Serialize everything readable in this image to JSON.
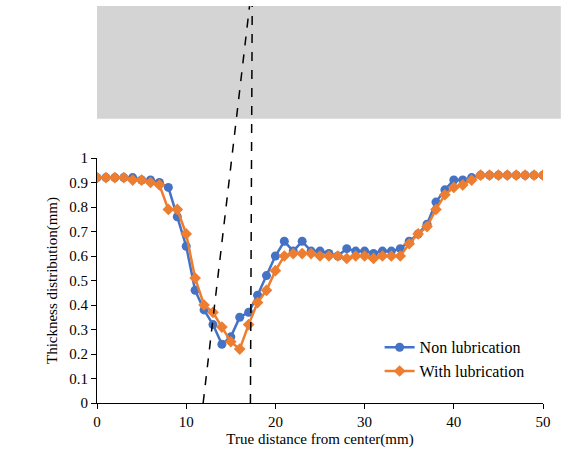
{
  "chart_data": {
    "type": "line",
    "x_label": "True distance from center(mm)",
    "y_label": "Thickness distribution(mm)",
    "x": [
      0,
      1,
      2,
      3,
      4,
      5,
      6,
      7,
      8,
      9,
      10,
      11,
      12,
      13,
      14,
      15,
      16,
      17,
      18,
      19,
      20,
      21,
      22,
      23,
      24,
      25,
      26,
      27,
      28,
      29,
      30,
      31,
      32,
      33,
      34,
      35,
      36,
      37,
      38,
      39,
      40,
      41,
      42,
      43,
      44,
      45,
      46,
      47,
      48,
      49,
      50
    ],
    "series": [
      {
        "name": "Non lubrication",
        "color": "#4472c4",
        "marker": "circle",
        "line_style": "solid",
        "values": [
          0.92,
          0.92,
          0.92,
          0.92,
          0.92,
          0.91,
          0.91,
          0.9,
          0.88,
          0.76,
          0.64,
          0.46,
          0.38,
          0.32,
          0.24,
          0.27,
          0.35,
          0.37,
          0.44,
          0.52,
          0.6,
          0.66,
          0.62,
          0.66,
          0.62,
          0.62,
          0.61,
          0.6,
          0.63,
          0.62,
          0.62,
          0.61,
          0.62,
          0.62,
          0.63,
          0.66,
          0.69,
          0.73,
          0.82,
          0.87,
          0.91,
          0.91,
          0.92,
          0.93,
          0.93,
          0.93,
          0.93,
          0.93,
          0.93,
          0.93,
          0.93
        ]
      },
      {
        "name": "With lubrication",
        "color": "#ed7d31",
        "marker": "diamond",
        "line_style": "solid",
        "values": [
          0.92,
          0.92,
          0.92,
          0.92,
          0.91,
          0.91,
          0.9,
          0.89,
          0.79,
          0.79,
          0.69,
          0.51,
          0.4,
          0.37,
          0.31,
          0.25,
          0.22,
          0.32,
          0.41,
          0.46,
          0.54,
          0.6,
          0.61,
          0.61,
          0.61,
          0.6,
          0.6,
          0.6,
          0.59,
          0.6,
          0.6,
          0.59,
          0.6,
          0.6,
          0.6,
          0.65,
          0.69,
          0.72,
          0.79,
          0.85,
          0.88,
          0.89,
          0.91,
          0.93,
          0.93,
          0.93,
          0.93,
          0.93,
          0.93,
          0.93,
          0.93
        ]
      }
    ],
    "xlim": [
      0,
      50
    ],
    "xticks": [
      0,
      10,
      20,
      30,
      40,
      50
    ],
    "ylim": [
      0,
      1
    ],
    "yticks": [
      0,
      0.1,
      0.2,
      0.3,
      0.4,
      0.5,
      0.6,
      0.7,
      0.8,
      0.9,
      1
    ],
    "grid": false,
    "legend": "lower right",
    "reference_lines": [
      {
        "x_bottom": 11.9,
        "x_top": 17.1,
        "line_style": "dashed"
      },
      {
        "x_bottom": 17.2,
        "x_top": 17.4,
        "line_style": "dashed"
      }
    ]
  }
}
